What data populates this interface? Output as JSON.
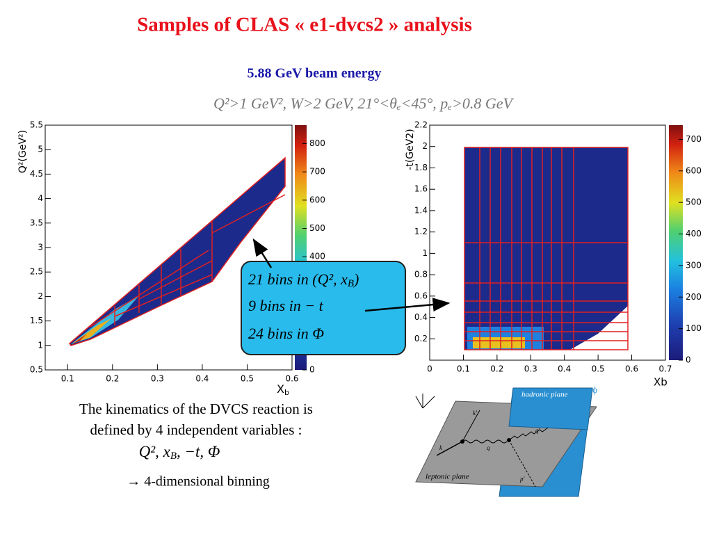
{
  "header": {
    "title": "Samples of CLAS « e1-dvcs2 » analysis",
    "subtitle": "5.88 GeV beam energy",
    "cuts": "Q²>1 GeV², W>2 GeV, 21°<θₑ<45°, pₑ>0.8 GeV"
  },
  "plot1": {
    "xlabel": {
      "main": "X",
      "sub": "b"
    },
    "ylabel": "Q²(GeV²)",
    "xlim": [
      0.05,
      0.6
    ],
    "xticks": [
      0.1,
      0.2,
      0.3,
      0.4,
      0.5,
      0.6
    ],
    "ylim": [
      0.5,
      5.5
    ],
    "yticks": [
      0.5,
      1,
      1.5,
      2,
      2.5,
      3,
      3.5,
      4,
      4.5,
      5,
      5.5
    ],
    "zlim": [
      0,
      865
    ],
    "zticks": [
      0,
      400,
      500,
      600,
      700,
      800
    ]
  },
  "plot2": {
    "xlabel": "Xb",
    "ylabel": "-t(GeV2)",
    "xlim": [
      0,
      0.7
    ],
    "xticks": [
      0,
      0.1,
      0.2,
      0.3,
      0.4,
      0.5,
      0.6,
      0.7
    ],
    "ylim": [
      0,
      2.2
    ],
    "yticks": [
      0.2,
      0.4,
      0.6,
      0.8,
      1,
      1.2,
      1.4,
      1.6,
      1.8,
      2,
      2.2
    ],
    "zlim": [
      0,
      745
    ],
    "zticks": [
      0,
      100,
      200,
      300,
      400,
      500,
      600,
      700
    ]
  },
  "callout": {
    "lines": [
      {
        "text": "21 bins in (Q², x",
        "sub": "B",
        "after": ")"
      },
      {
        "text": "9 bins in − t"
      },
      {
        "text": "24 bins in Φ"
      }
    ]
  },
  "text": {
    "lines": [
      "The kinematics of the DVCS reaction is",
      "defined by 4 independent variables :",
      "Q², x",
      "→ 4-dimensional binning"
    ],
    "variables_sub": "B",
    "variables_after": ", −t, Φ"
  },
  "diagram": {
    "hadronic": "hadronic plane",
    "leptonic": "leptonic plane",
    "phi": "ϕ",
    "k": "k",
    "kp": "k'",
    "q": "q",
    "qp": "q'",
    "pp": "p'"
  }
}
